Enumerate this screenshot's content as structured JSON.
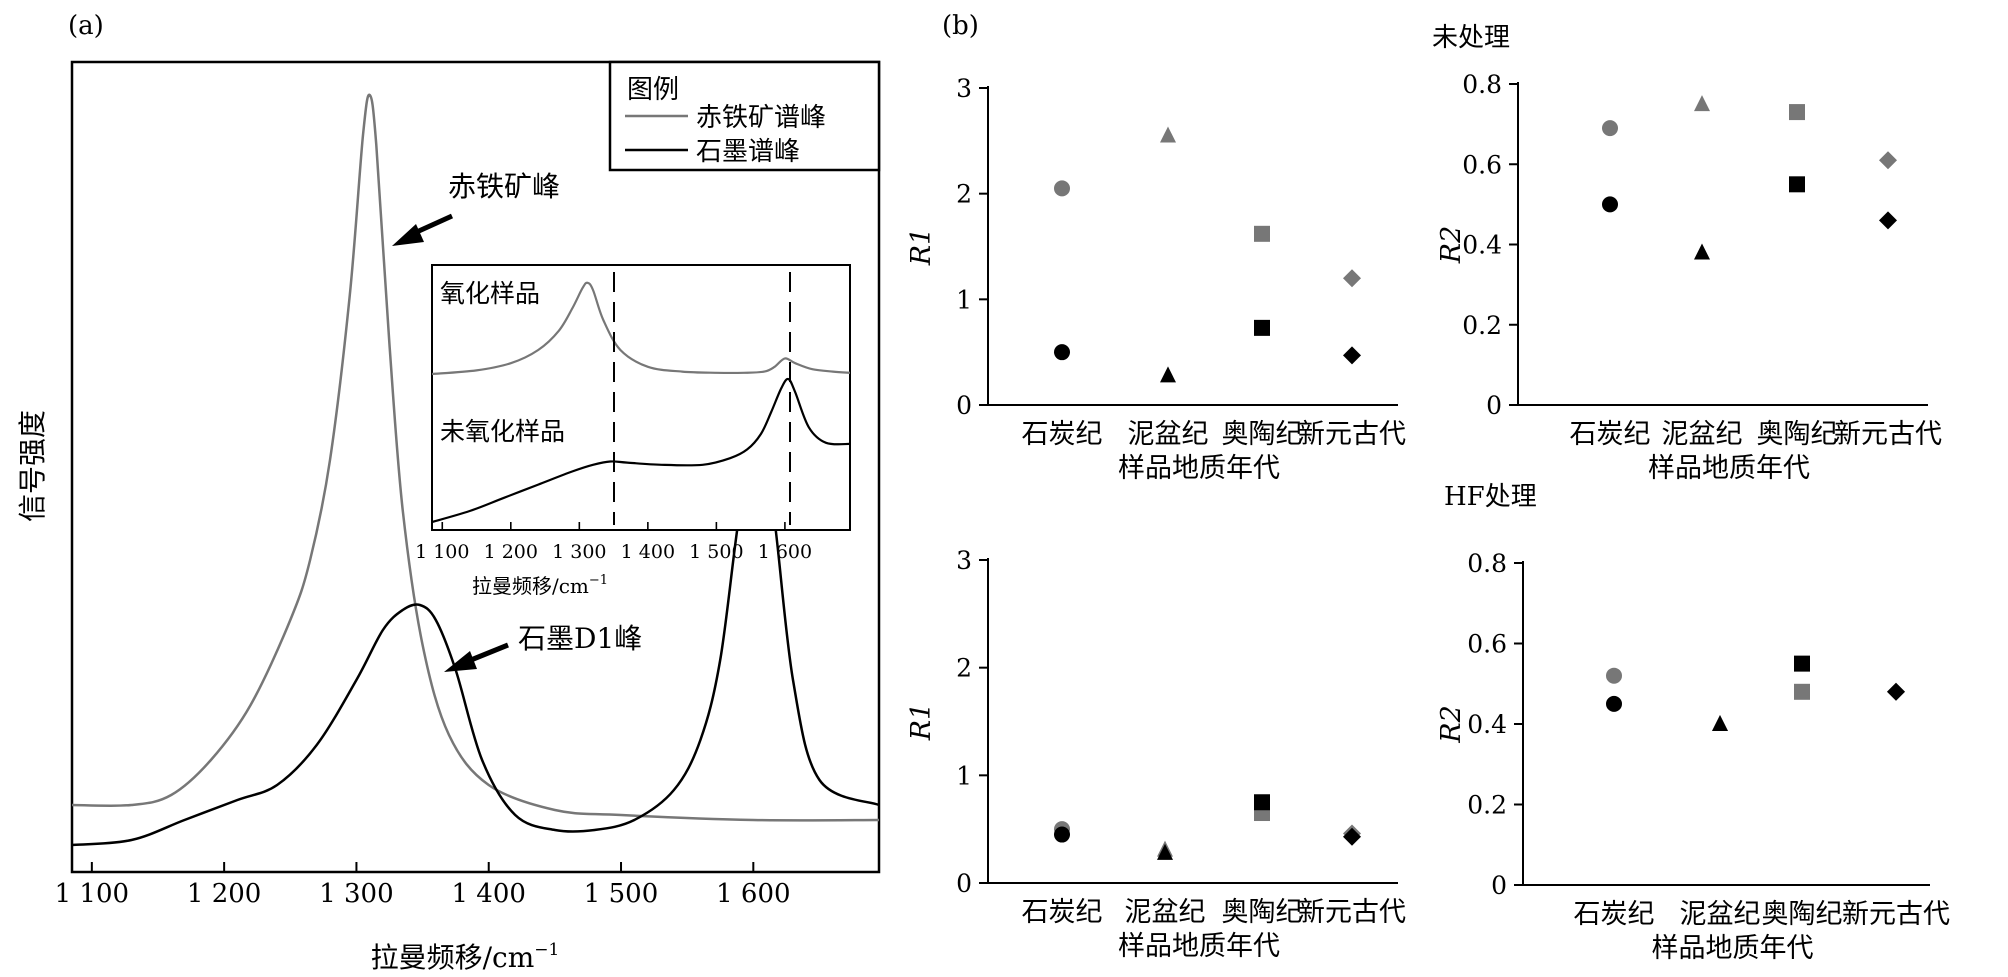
{
  "panel_a": {
    "label": "(a)",
    "ylabel": "信号强度",
    "xlabel_main": "拉曼频移/cm",
    "xlabel_sup": "−1",
    "ticks": [
      "1 100",
      "1 200",
      "1 300",
      "1 400",
      "1 500",
      "1 600"
    ],
    "legend": {
      "title": "图例",
      "hematite": "赤铁矿谱峰",
      "graphite": "石墨谱峰"
    },
    "annot_hematite": "赤铁矿峰",
    "annot_graphite": "石墨D1峰",
    "inset": {
      "label_oxidized": "氧化样品",
      "label_unoxidized": "未氧化样品",
      "ticks": [
        "1 100",
        "1 200",
        "1 300",
        "1 400",
        "1 500",
        "1 600"
      ],
      "xlabel_main": "拉曼频移/cm",
      "xlabel_sup": "−1"
    }
  },
  "panel_b": {
    "label": "(b)",
    "title_top": "未处理",
    "title_bottom": "HF处理",
    "xlabel": "样品地质年代",
    "categories": [
      "石炭纪",
      "泥盆纪",
      "奥陶纪",
      "新元古代"
    ],
    "r1_ticks": [
      "0",
      "1",
      "2",
      "3"
    ],
    "r2_ticks": [
      "0",
      "0.2",
      "0.4",
      "0.6",
      "0.8"
    ],
    "ylabel_r1": "R1",
    "ylabel_r2": "R2"
  },
  "colors": {
    "gray": "#777777",
    "black": "#000000"
  },
  "chart_data": [
    {
      "type": "line",
      "x_range": [
        1085,
        1695
      ],
      "series": [
        {
          "name": "赤铁矿谱峰",
          "color": "gray",
          "x": [
            1085,
            1130,
            1160,
            1190,
            1220,
            1250,
            1265,
            1280,
            1295,
            1305,
            1310,
            1315,
            1325,
            1335,
            1350,
            1370,
            1400,
            1450,
            1500,
            1600,
            1695
          ],
          "y": [
            0.13,
            0.13,
            0.15,
            0.22,
            0.33,
            0.5,
            0.62,
            0.82,
            1.15,
            1.47,
            1.55,
            1.45,
            1.05,
            0.72,
            0.45,
            0.27,
            0.17,
            0.12,
            0.11,
            0.1,
            0.1
          ]
        },
        {
          "name": "石墨谱峰",
          "color": "black",
          "x": [
            1085,
            1130,
            1170,
            1210,
            1240,
            1270,
            1300,
            1320,
            1335,
            1348,
            1360,
            1375,
            1395,
            1420,
            1450,
            1480,
            1510,
            1540,
            1560,
            1575,
            1590,
            1603,
            1615,
            1630,
            1650,
            1695
          ],
          "y": [
            0.05,
            0.06,
            0.1,
            0.14,
            0.17,
            0.25,
            0.38,
            0.48,
            0.52,
            0.53,
            0.5,
            0.4,
            0.22,
            0.11,
            0.08,
            0.08,
            0.1,
            0.16,
            0.26,
            0.42,
            0.72,
            0.86,
            0.72,
            0.38,
            0.18,
            0.13
          ]
        }
      ],
      "annotations": [
        "赤铁矿峰",
        "石墨D1峰"
      ]
    },
    {
      "type": "scatter",
      "panel": "未处理 R1",
      "categories": [
        "石炭纪",
        "泥盆纪",
        "奥陶纪",
        "新元古代"
      ],
      "ylim": [
        0,
        3
      ],
      "series": [
        {
          "color": "gray",
          "values": [
            2.05,
            2.55,
            1.62,
            1.2
          ]
        },
        {
          "color": "black",
          "values": [
            0.5,
            0.28,
            0.73,
            0.47
          ]
        }
      ]
    },
    {
      "type": "scatter",
      "panel": "未处理 R2",
      "categories": [
        "石炭纪",
        "泥盆纪",
        "奥陶纪",
        "新元古代"
      ],
      "ylim": [
        0,
        0.8
      ],
      "series": [
        {
          "color": "gray",
          "values": [
            0.69,
            0.75,
            0.73,
            0.61
          ]
        },
        {
          "color": "black",
          "values": [
            0.5,
            0.38,
            0.55,
            0.46
          ]
        }
      ]
    },
    {
      "type": "scatter",
      "panel": "HF处理 R1",
      "categories": [
        "石炭纪",
        "泥盆纪",
        "奥陶纪",
        "新元古代"
      ],
      "ylim": [
        0,
        3
      ],
      "series": [
        {
          "color": "gray",
          "values": [
            0.5,
            0.31,
            0.65,
            0.46
          ]
        },
        {
          "color": "black",
          "values": [
            0.45,
            0.28,
            0.75,
            0.43
          ]
        }
      ]
    },
    {
      "type": "scatter",
      "panel": "HF处理 R2",
      "categories": [
        "石炭纪",
        "泥盆纪",
        "奥陶纪",
        "新元古代"
      ],
      "ylim": [
        0,
        0.8
      ],
      "series": [
        {
          "color": "gray",
          "values": [
            0.52,
            0.4,
            0.48,
            0.48
          ]
        },
        {
          "color": "black",
          "values": [
            0.45,
            0.4,
            0.55,
            0.48
          ]
        }
      ]
    }
  ]
}
